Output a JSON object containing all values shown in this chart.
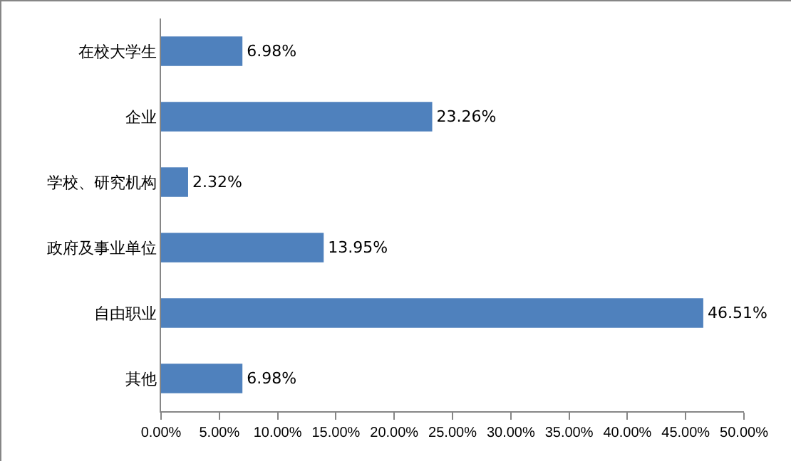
{
  "chart_data": {
    "type": "bar",
    "orientation": "horizontal",
    "categories": [
      "在校大学生",
      "企业",
      "学校、研究机构",
      "政府及事业单位",
      "自由职业",
      "其他"
    ],
    "values": [
      6.98,
      23.26,
      2.32,
      13.95,
      46.51,
      6.98
    ],
    "value_labels": [
      "6.98%",
      "23.26%",
      "2.32%",
      "13.95%",
      "46.51%",
      "6.98%"
    ],
    "color": "#4f81bd",
    "xlim": [
      0,
      50
    ],
    "xticks": [
      {
        "value": 0,
        "label": "0.00%"
      },
      {
        "value": 5,
        "label": "5.00%"
      },
      {
        "value": 10,
        "label": "10.00%"
      },
      {
        "value": 15,
        "label": "15.00%"
      },
      {
        "value": 20,
        "label": "20.00%"
      },
      {
        "value": 25,
        "label": "25.00%"
      },
      {
        "value": 30,
        "label": "30.00%"
      },
      {
        "value": 35,
        "label": "35.00%"
      },
      {
        "value": 40,
        "label": "40.00%"
      },
      {
        "value": 45,
        "label": "45.00%"
      },
      {
        "value": 50,
        "label": "50.00%"
      }
    ],
    "grid": false
  }
}
